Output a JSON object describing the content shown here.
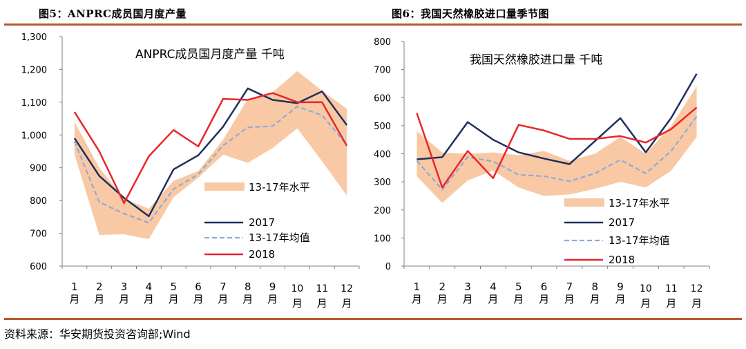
{
  "figure_titles": [
    "图5：ANPRC成员国月度产量",
    "图6：我国天然橡胶进口量季节图"
  ],
  "source": "资料来源：华安期货投资咨询部;Wind",
  "colors": {
    "band": "#f8c9a4",
    "y2017": "#1f2f5c",
    "avg": "#8faad6",
    "y2018": "#e8262b",
    "rule": "#b65a2c"
  },
  "chart_data": [
    {
      "type": "line",
      "title": "ANPRC成员国月度产量  千吨",
      "categories": [
        "1月",
        "2月",
        "3月",
        "4月",
        "5月",
        "6月",
        "7月",
        "8月",
        "9月",
        "10月",
        "11月",
        "12月"
      ],
      "ylim": [
        600,
        1300
      ],
      "yticks": [
        600,
        700,
        800,
        900,
        1000,
        1100,
        1200,
        1300
      ],
      "ytick_labels": [
        "600",
        "700",
        "800",
        "900",
        "1,000",
        "1,100",
        "1,200",
        "1,300"
      ],
      "band": {
        "name": "13-17年水平",
        "lower": [
          940,
          695,
          697,
          682,
          810,
          870,
          940,
          915,
          960,
          1020,
          920,
          815
        ],
        "upper": [
          1040,
          900,
          805,
          775,
          860,
          890,
          985,
          1110,
          1130,
          1195,
          1135,
          1080
        ]
      },
      "series": [
        {
          "name": "2017",
          "values": [
            990,
            875,
            808,
            752,
            895,
            938,
            1025,
            1142,
            1107,
            1097,
            1133,
            1030
          ]
        },
        {
          "name": "13-17年均值",
          "values": [
            980,
            795,
            760,
            732,
            835,
            880,
            968,
            1023,
            1027,
            1087,
            1060,
            970
          ]
        },
        {
          "name": "2018",
          "values": [
            1070,
            950,
            792,
            935,
            1015,
            965,
            1110,
            1107,
            1128,
            1100,
            1100,
            967
          ]
        }
      ],
      "legend": [
        "13-17年水平",
        "2017",
        "13-17年均值",
        "2018"
      ],
      "legend_position": "bottom-right",
      "grid": false
    },
    {
      "type": "line",
      "title": "我国天然橡胶进口量  千吨",
      "categories": [
        "1月",
        "2月",
        "3月",
        "4月",
        "5月",
        "6月",
        "7月",
        "8月",
        "9月",
        "10月",
        "11月",
        "12月"
      ],
      "ylim": [
        0,
        800
      ],
      "yticks": [
        0,
        100,
        200,
        300,
        400,
        500,
        600,
        700,
        800
      ],
      "ytick_labels": [
        "0",
        "100",
        "200",
        "300",
        "400",
        "500",
        "600",
        "700",
        "800"
      ],
      "band": {
        "name": "13-17年水平",
        "lower": [
          320,
          225,
          305,
          340,
          280,
          250,
          255,
          275,
          300,
          280,
          340,
          460
        ],
        "upper": [
          480,
          405,
          400,
          405,
          395,
          410,
          375,
          400,
          460,
          400,
          500,
          640
        ]
      },
      "series": [
        {
          "name": "2017",
          "values": [
            380,
            388,
            513,
            450,
            405,
            383,
            363,
            445,
            527,
            405,
            528,
            685
          ]
        },
        {
          "name": "13-17年均值",
          "values": [
            375,
            272,
            388,
            373,
            325,
            320,
            302,
            330,
            378,
            330,
            410,
            533
          ]
        },
        {
          "name": "2018",
          "values": [
            545,
            280,
            410,
            313,
            503,
            483,
            453,
            453,
            463,
            440,
            488,
            565
          ]
        }
      ],
      "legend": [
        "13-17年水平",
        "2017",
        "13-17年均值",
        "2018"
      ],
      "legend_position": "bottom-right",
      "grid": false
    }
  ]
}
